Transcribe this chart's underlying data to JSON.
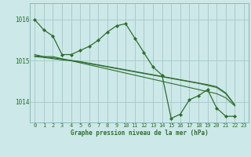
{
  "background_color": "#cce8e8",
  "plot_bg_color": "#cce8e8",
  "grid_color": "#aacccc",
  "line_color": "#2d6e2d",
  "marker_color": "#2d6e2d",
  "title": "Graphe pression niveau de la mer (hPa)",
  "xlim": [
    -0.5,
    23.5
  ],
  "ylim": [
    1013.5,
    1016.4
  ],
  "series": [
    [
      1016.0,
      1015.75,
      1015.6,
      1015.15,
      1015.15,
      1015.25,
      1015.35,
      1015.5,
      1015.7,
      1015.85,
      1015.9,
      1015.55,
      1015.2,
      1014.85,
      1014.65,
      1013.6,
      1013.7,
      1014.05,
      1014.15,
      1014.3,
      1013.85,
      1013.65,
      1013.65
    ],
    [
      1015.15,
      1015.1,
      1015.1,
      1015.05,
      1015.0,
      1014.95,
      1014.9,
      1014.85,
      1014.8,
      1014.75,
      1014.7,
      1014.65,
      1014.6,
      1014.55,
      1014.5,
      1014.45,
      1014.4,
      1014.35,
      1014.3,
      1014.25,
      1014.2,
      1014.1,
      1013.9
    ],
    [
      1015.1,
      1015.08,
      1015.05,
      1015.02,
      1015.0,
      1014.97,
      1014.93,
      1014.89,
      1014.85,
      1014.81,
      1014.77,
      1014.73,
      1014.69,
      1014.65,
      1014.61,
      1014.57,
      1014.53,
      1014.49,
      1014.45,
      1014.4,
      1014.35,
      1014.2,
      1013.92
    ],
    [
      1015.12,
      1015.1,
      1015.07,
      1015.04,
      1015.01,
      1014.98,
      1014.94,
      1014.9,
      1014.86,
      1014.82,
      1014.78,
      1014.74,
      1014.7,
      1014.66,
      1014.62,
      1014.58,
      1014.54,
      1014.5,
      1014.46,
      1014.42,
      1014.37,
      1014.22,
      1013.93
    ]
  ],
  "xticks": [
    0,
    1,
    2,
    3,
    4,
    5,
    6,
    7,
    8,
    9,
    10,
    11,
    12,
    13,
    14,
    15,
    16,
    17,
    18,
    19,
    20,
    21,
    22,
    23
  ],
  "yticks": [
    1014,
    1015,
    1016
  ],
  "tick_fontsize": 5.0,
  "label_fontsize": 5.5
}
